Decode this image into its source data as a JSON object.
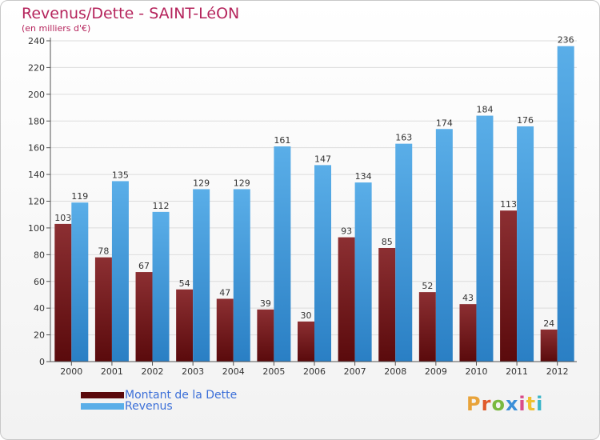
{
  "header": {
    "title": "Revenus/Dette - SAINT-LéON",
    "subtitle": "(en milliers d'€)"
  },
  "legend": {
    "debt_label": "Montant de la Dette",
    "revenue_label": "Revenus"
  },
  "logo": {
    "letters": [
      "P",
      "r",
      "o",
      "x",
      "i",
      "t",
      "i"
    ],
    "colors": [
      "#e8a33a",
      "#e05a2b",
      "#7ab940",
      "#3b8fd8",
      "#d94c8a",
      "#f0c030",
      "#3bb5c8"
    ]
  },
  "colors": {
    "debt_top": "#8c2f32",
    "debt_bottom": "#5a0a0c",
    "revenue_top": "#5aaee8",
    "revenue_bottom": "#2a7fc4",
    "title": "#b5245c"
  },
  "chart_data": {
    "type": "bar",
    "title": "Revenus/Dette - SAINT-LéON",
    "subtitle": "(en milliers d'€)",
    "categories": [
      "2000",
      "2001",
      "2002",
      "2003",
      "2004",
      "2005",
      "2006",
      "2007",
      "2008",
      "2009",
      "2010",
      "2011",
      "2012"
    ],
    "series": [
      {
        "name": "Montant de la Dette",
        "values": [
          103,
          78,
          67,
          54,
          47,
          39,
          30,
          93,
          85,
          52,
          43,
          113,
          24
        ]
      },
      {
        "name": "Revenus",
        "values": [
          119,
          135,
          112,
          129,
          129,
          161,
          147,
          134,
          163,
          174,
          184,
          176,
          236
        ]
      }
    ],
    "ylim": [
      0,
      240
    ],
    "yticks": [
      0,
      20,
      40,
      60,
      80,
      100,
      120,
      140,
      160,
      180,
      200,
      220,
      240
    ],
    "grid": true,
    "legend_position": "bottom-left"
  }
}
